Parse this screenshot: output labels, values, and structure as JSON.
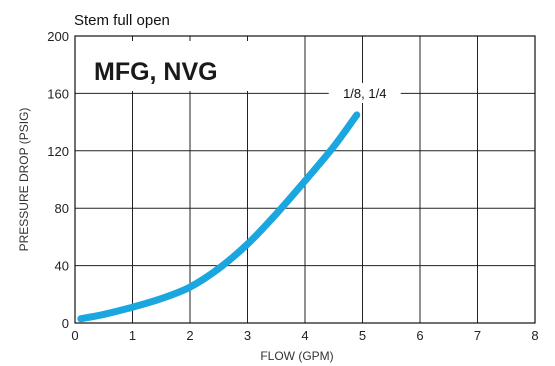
{
  "chart_data": {
    "type": "line",
    "subtitle": "Stem full open",
    "title": "MFG, NVG",
    "xlabel": "FLOW (GPM)",
    "ylabel": "PRESSURE DROP (PSIG)",
    "xlim": [
      0,
      8
    ],
    "ylim": [
      0,
      200
    ],
    "xticks": [
      "0",
      "1",
      "2",
      "3",
      "4",
      "5",
      "6",
      "7",
      "8"
    ],
    "yticks": [
      "0",
      "40",
      "80",
      "120",
      "160",
      "200"
    ],
    "grid": true,
    "series": [
      {
        "name": "1/8, 1/4",
        "color": "#1aa6df",
        "x": [
          0.1,
          0.5,
          1.0,
          1.5,
          2.0,
          2.5,
          3.0,
          3.5,
          4.0,
          4.5,
          4.9
        ],
        "y": [
          3,
          6,
          11,
          17,
          25,
          38,
          55,
          76,
          99,
          123,
          145
        ]
      }
    ]
  }
}
